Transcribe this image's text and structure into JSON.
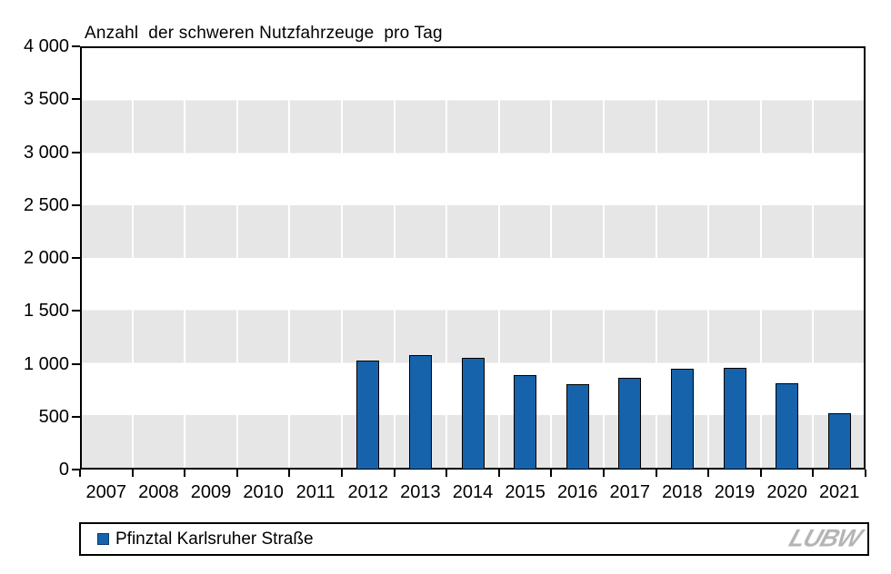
{
  "chart_data": {
    "type": "bar",
    "title": "Anzahl  der schweren Nutzfahrzeuge  pro Tag",
    "categories": [
      "2007",
      "2008",
      "2009",
      "2010",
      "2011",
      "2012",
      "2013",
      "2014",
      "2015",
      "2016",
      "2017",
      "2018",
      "2019",
      "2020",
      "2021"
    ],
    "series": [
      {
        "name": "Pfinztal Karlsruher Straße",
        "values": [
          null,
          null,
          null,
          null,
          null,
          1030,
          1085,
          1060,
          895,
          810,
          865,
          950,
          965,
          815,
          530
        ]
      }
    ],
    "xlabel": "",
    "ylabel": "",
    "ylim": [
      0,
      4000
    ],
    "ytick_values": [
      0,
      500,
      1000,
      1500,
      2000,
      2500,
      3000,
      3500,
      4000
    ],
    "ytick_labels": [
      "0",
      "500",
      "1 000",
      "1 500",
      "2 000",
      "2 500",
      "3 000",
      "3 500",
      "4 000"
    ],
    "grid": "horizontal-bands-500",
    "legend_position": "bottom",
    "bar_color": "#1663ac",
    "bar_border_color": "#000000",
    "band_color": "#e6e6e6"
  },
  "legend": {
    "label": "Pfinztal Karlsruher Straße",
    "marker_color": "#1663ac"
  },
  "logo": {
    "text": "LUBW",
    "color": "#b5b5b5"
  }
}
